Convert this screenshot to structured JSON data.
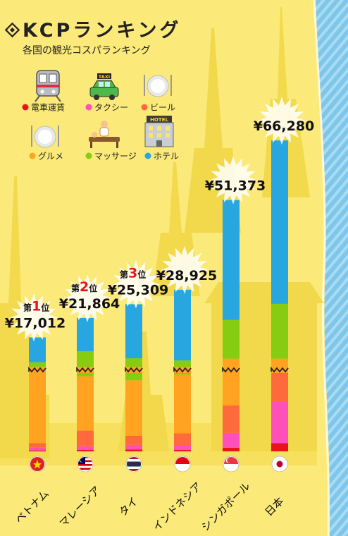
{
  "header": {
    "title": "KCPランキング",
    "subtitle": "各国の観光コスパランキング"
  },
  "legend": [
    {
      "label": "電車運賃",
      "color": "#e8141c",
      "icon": "train-icon"
    },
    {
      "label": "タクシー",
      "color": "#ff4fb8",
      "icon": "taxi-icon"
    },
    {
      "label": "ビール",
      "color": "#ff6a3c",
      "icon": "plate-cutlery-icon"
    },
    {
      "label": "グルメ",
      "color": "#ffa320",
      "icon": "plate-cutlery-icon"
    },
    {
      "label": "マッサージ",
      "color": "#86cc10",
      "icon": "massage-icon"
    },
    {
      "label": "ホテル",
      "color": "#27a6e0",
      "icon": "hotel-icon"
    }
  ],
  "taxi_sign": "TAXI",
  "hotel_sign": "HOTEL",
  "rank_labels": [
    {
      "prefix": "第",
      "num": "1",
      "suffix": "位"
    },
    {
      "prefix": "第",
      "num": "2",
      "suffix": "位"
    },
    {
      "prefix": "第",
      "num": "3",
      "suffix": "位"
    }
  ],
  "chart_data": {
    "type": "bar",
    "stacked": true,
    "categories": [
      "ベトナム",
      "マレーシア",
      "タイ",
      "インドネシア",
      "シンガポール",
      "日本"
    ],
    "totals": [
      "¥17,012",
      "¥21,864",
      "¥25,309",
      "¥28,925",
      "¥51,373",
      "¥66,280"
    ],
    "total_values": [
      17012,
      21864,
      25309,
      28925,
      51373,
      66280
    ],
    "flags": [
      "vietnam-flag-icon",
      "malaysia-flag-icon",
      "thailand-flag-icon",
      "indonesia-flag-icon",
      "singapore-flag-icon",
      "japan-flag-icon"
    ],
    "axis_break": true,
    "series": [
      {
        "name": "電車運賃",
        "color": "#e8141c",
        "values": [
          100,
          150,
          200,
          150,
          400,
          900
        ]
      },
      {
        "name": "タクシー",
        "color": "#ff4fb8",
        "values": [
          300,
          400,
          500,
          500,
          1600,
          4500
        ]
      },
      {
        "name": "ビール",
        "color": "#ff6a3c",
        "values": [
          500,
          1700,
          1000,
          1300,
          3000,
          3300
        ]
      },
      {
        "name": "グルメ",
        "color": "#ffa320",
        "values": [
          7800,
          5900,
          6000,
          6400,
          6700,
          3000
        ]
      },
      {
        "name": "マッサージ",
        "color": "#86cc10",
        "values": [
          2100,
          5400,
          4100,
          2900,
          9700,
          13700
        ]
      },
      {
        "name": "ホテル",
        "color": "#27a6e0",
        "values": [
          6212,
          8314,
          13509,
          17675,
          29973,
          40880
        ]
      }
    ]
  }
}
